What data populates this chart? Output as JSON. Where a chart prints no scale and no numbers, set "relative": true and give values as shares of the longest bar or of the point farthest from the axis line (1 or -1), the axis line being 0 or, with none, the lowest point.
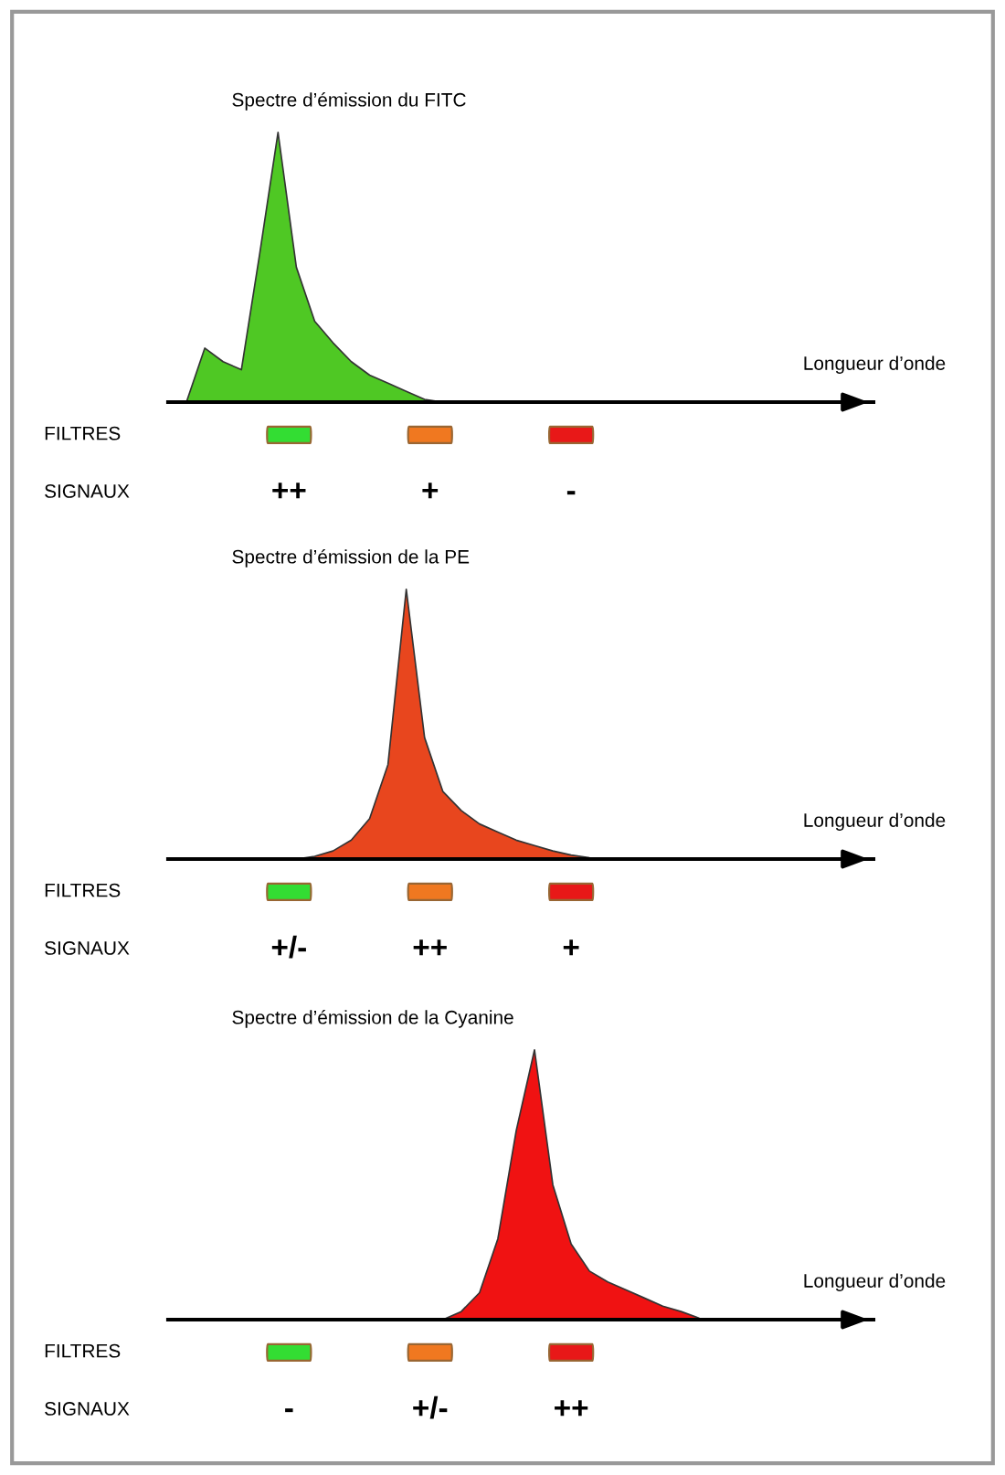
{
  "chart_data": [
    {
      "type": "area",
      "relative": true,
      "title": "Spectre d’émission du FITC",
      "xlabel": "Longueur d’onde",
      "color": "#4fc824",
      "categories": [
        null,
        null,
        null,
        null,
        null,
        null,
        null,
        null,
        null,
        null,
        null,
        null,
        null,
        null,
        null,
        null,
        null,
        null,
        null,
        null,
        null,
        null,
        null,
        null,
        null,
        null,
        null,
        null,
        null,
        null,
        null,
        null,
        null,
        null,
        null,
        null,
        null,
        null,
        null
      ],
      "values": [
        0,
        0,
        0.2,
        0.15,
        0.12,
        0.55,
        1,
        0.5,
        0.3,
        0.22,
        0.15,
        0.1,
        0.07,
        0.04,
        0.01,
        0,
        0,
        0,
        0,
        0,
        0,
        0,
        0,
        0,
        0,
        0,
        0,
        0,
        0,
        0,
        0,
        0,
        0,
        0,
        0,
        0,
        0,
        0,
        0
      ],
      "annotations": [
        "FILTRES",
        "SIGNAUX",
        "++",
        "+",
        "-"
      ]
    },
    {
      "type": "area",
      "relative": true,
      "title": "Spectre d’émission de la PE",
      "xlabel": "Longueur d’onde",
      "color": "#e8461e",
      "categories": [
        null,
        null,
        null,
        null,
        null,
        null,
        null,
        null,
        null,
        null,
        null,
        null,
        null,
        null,
        null,
        null,
        null,
        null,
        null,
        null,
        null,
        null,
        null,
        null,
        null,
        null,
        null,
        null,
        null,
        null,
        null,
        null,
        null,
        null,
        null,
        null,
        null,
        null,
        null
      ],
      "values": [
        0,
        0,
        0,
        0,
        0,
        0,
        0,
        0,
        0.01,
        0.03,
        0.07,
        0.15,
        0.35,
        1,
        0.45,
        0.25,
        0.18,
        0.13,
        0.1,
        0.07,
        0.05,
        0.03,
        0.015,
        0.005,
        0,
        0,
        0,
        0,
        0,
        0,
        0,
        0,
        0,
        0,
        0,
        0,
        0,
        0,
        0
      ],
      "annotations": [
        "FILTRES",
        "SIGNAUX",
        "+/-",
        "++",
        "+"
      ]
    },
    {
      "type": "area",
      "relative": true,
      "title": "Spectre d’émission de la Cyanine",
      "xlabel": "Longueur d’onde",
      "color": "#f01212",
      "categories": [
        null,
        null,
        null,
        null,
        null,
        null,
        null,
        null,
        null,
        null,
        null,
        null,
        null,
        null,
        null,
        null,
        null,
        null,
        null,
        null,
        null,
        null,
        null,
        null,
        null,
        null,
        null,
        null,
        null,
        null,
        null,
        null,
        null,
        null,
        null,
        null,
        null,
        null,
        null
      ],
      "values": [
        0,
        0,
        0,
        0,
        0,
        0,
        0,
        0,
        0,
        0,
        0,
        0,
        0,
        0,
        0,
        0,
        0.03,
        0.1,
        0.3,
        0.7,
        1,
        0.5,
        0.28,
        0.18,
        0.14,
        0.11,
        0.08,
        0.05,
        0.03,
        0.005,
        0,
        0,
        0,
        0,
        0,
        0,
        0,
        0,
        0
      ],
      "annotations": [
        "FILTRES",
        "SIGNAUX",
        "-",
        "+/-",
        "++"
      ]
    }
  ]
}
